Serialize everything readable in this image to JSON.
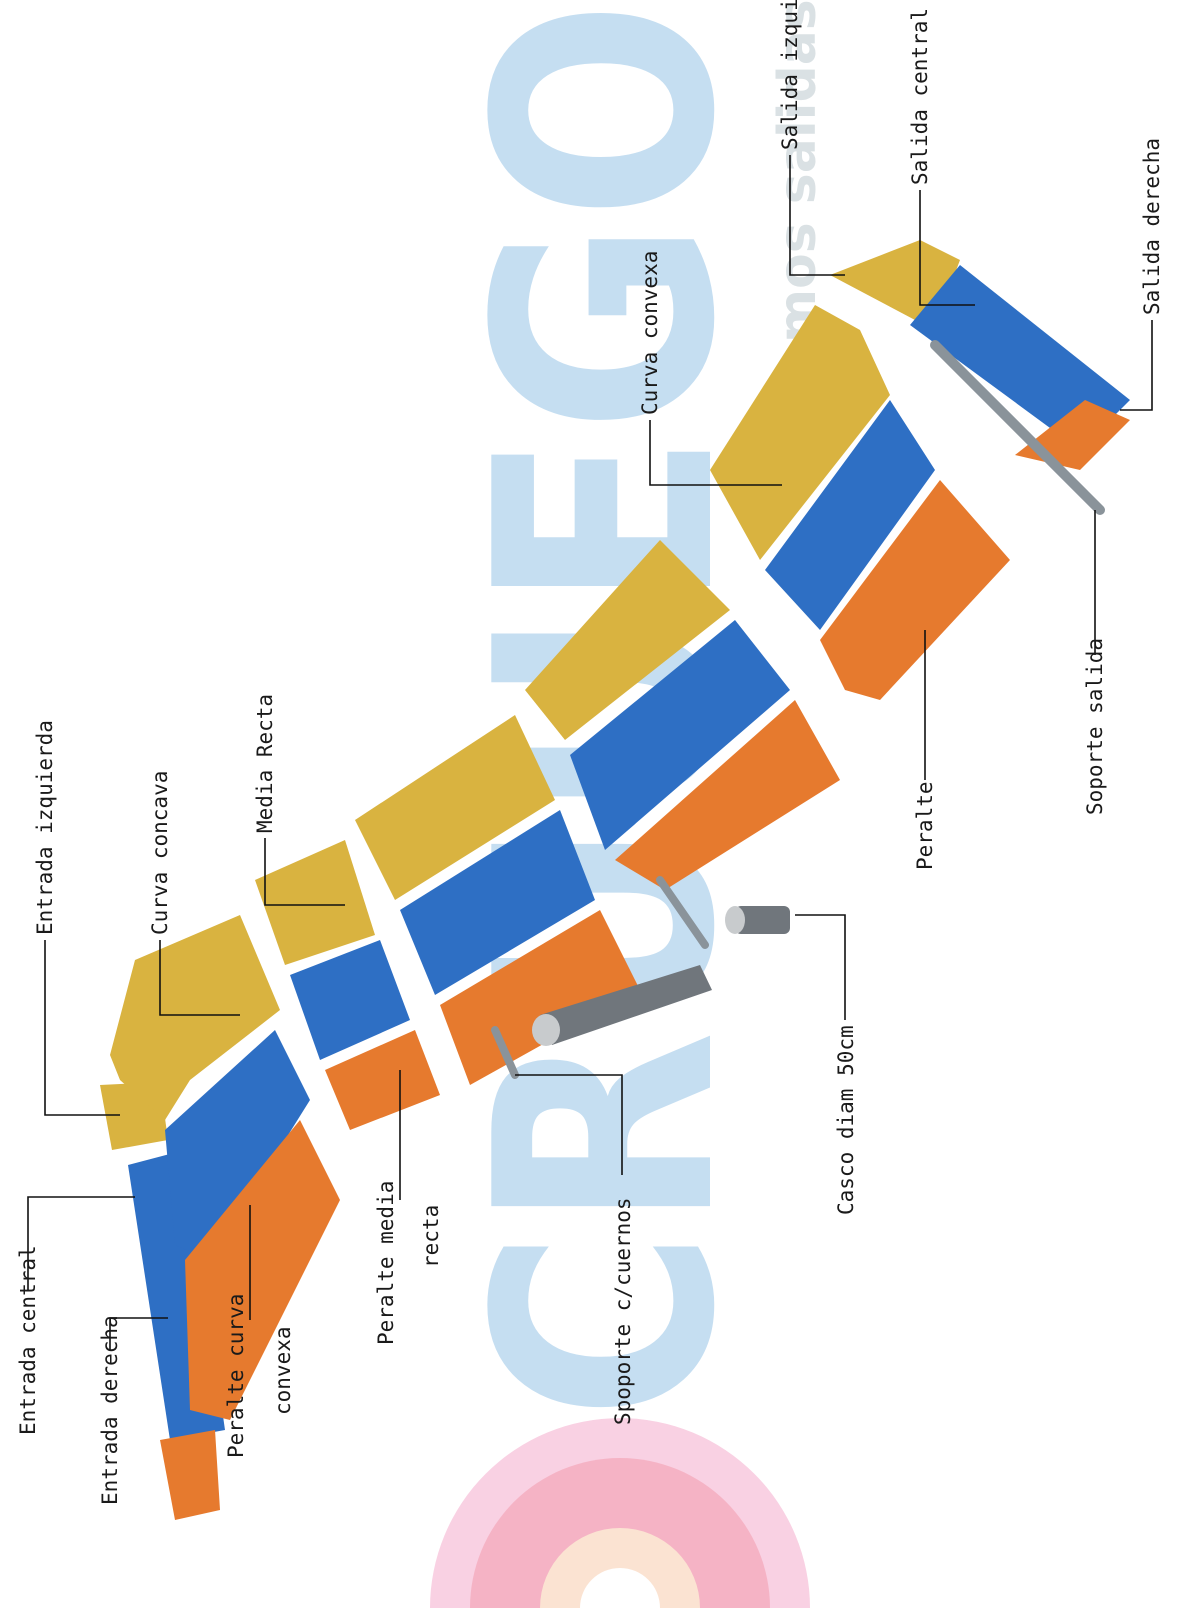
{
  "watermark": {
    "brand": "CRUUEGO",
    "tagline": "creamos salidas",
    "brand_color": "#3a8fd0",
    "tagline_color": "#8ba0a8",
    "logo_colors": [
      "#e94c6f",
      "#f2a2c6",
      "#f6c7a4"
    ]
  },
  "parts_colors": {
    "left_half": "#d9b340",
    "center_half": "#2e6fc4",
    "right_half": "#e67a2e",
    "support": "#8a939a",
    "casco": "#70767c"
  },
  "labels": {
    "entrada_izquierda": "Entrada izquierda",
    "curva_concava": "Curva concava",
    "media_recta": "Media Recta",
    "curva_convexa": "Curva convexa",
    "salida_izquierda": "Salida izquierda",
    "salida_central": "Salida central",
    "salida_derecha": "Salida derecha",
    "entrada_central": "Entrada central",
    "entrada_derecha": "Entrada derecha",
    "peralte_curva_convexa": [
      "Peralte curva",
      "convexa"
    ],
    "peralte_media_recta": [
      "Peralte media",
      "recta"
    ],
    "soporte_cuernos": "Spoporte c/cuernos",
    "casco_diam": "Casco diam 50cm",
    "peralte": "Peralte",
    "soporte_salida": "Soporte salida"
  }
}
